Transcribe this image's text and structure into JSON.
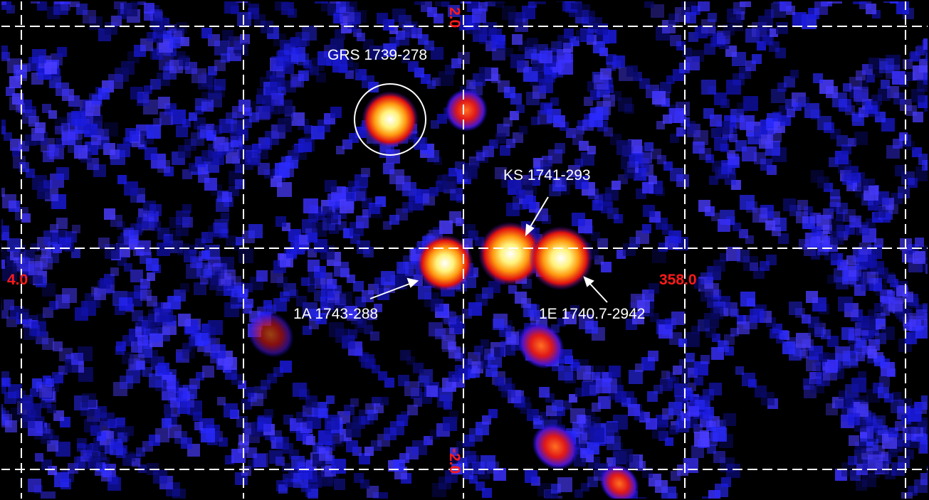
{
  "image": {
    "description_colors": {
      "background": "#000000",
      "low_intensity": "#1a1aff",
      "mid_intensity": "#ff2020",
      "high_intensity": "#ffffff",
      "grid": "#ffffff",
      "coord_labels": "#ff1a1a",
      "annotations": "#ffffff"
    }
  },
  "coord_labels": {
    "lon_left": "4.0",
    "lon_right": "358.0",
    "lat_top": "2.0",
    "lat_bottom": "-2.0"
  },
  "sources": {
    "grs": "GRS 1739-278",
    "ks": "KS 1741-293",
    "a1743": "1A 1743-288",
    "e1740": "1E 1740.7-2942"
  }
}
